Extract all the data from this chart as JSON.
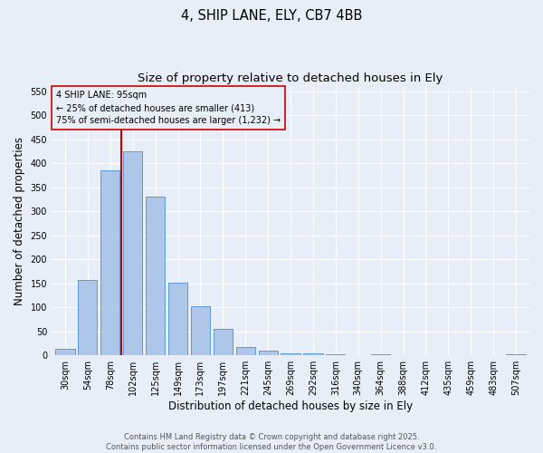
{
  "title_line1": "4, SHIP LANE, ELY, CB7 4BB",
  "title_line2": "Size of property relative to detached houses in Ely",
  "xlabel": "Distribution of detached houses by size in Ely",
  "ylabel": "Number of detached properties",
  "categories": [
    "30sqm",
    "54sqm",
    "78sqm",
    "102sqm",
    "125sqm",
    "149sqm",
    "173sqm",
    "197sqm",
    "221sqm",
    "245sqm",
    "269sqm",
    "292sqm",
    "316sqm",
    "340sqm",
    "364sqm",
    "388sqm",
    "412sqm",
    "435sqm",
    "459sqm",
    "483sqm",
    "507sqm"
  ],
  "values": [
    13,
    157,
    385,
    425,
    330,
    152,
    102,
    55,
    18,
    10,
    5,
    5,
    3,
    1,
    3,
    1,
    1,
    0,
    0,
    1,
    3
  ],
  "bar_color": "#aec6e8",
  "bar_edge_color": "#5b9bd5",
  "background_color": "#e8eef8",
  "grid_color": "#ffffff",
  "vline_color": "#cc0000",
  "annotation_text": "4 SHIP LANE: 95sqm\n← 25% of detached houses are smaller (413)\n75% of semi-detached houses are larger (1,232) →",
  "annotation_box_edge_color": "#cc0000",
  "ylim": [
    0,
    560
  ],
  "yticks": [
    0,
    50,
    100,
    150,
    200,
    250,
    300,
    350,
    400,
    450,
    500,
    550
  ],
  "footnote": "Contains HM Land Registry data © Crown copyright and database right 2025.\nContains public sector information licensed under the Open Government Licence v3.0.",
  "title_fontsize": 10.5,
  "subtitle_fontsize": 9.5,
  "axis_label_fontsize": 8.5,
  "tick_fontsize": 7,
  "footnote_fontsize": 6,
  "annotation_fontsize": 7
}
